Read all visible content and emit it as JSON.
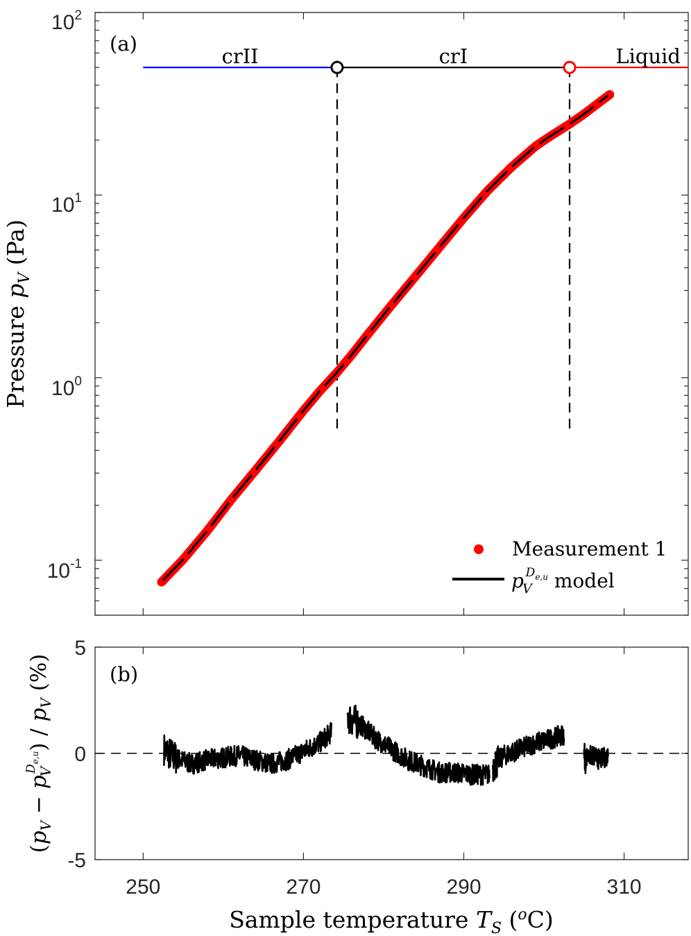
{
  "chart_data": [
    {
      "panel": "(a)",
      "type": "line",
      "yscale": "log",
      "xlim": [
        244,
        318
      ],
      "ylim": [
        0.05,
        100
      ],
      "ytick_labels": [
        {
          "base": "10",
          "exp": "2"
        },
        {
          "base": "10",
          "exp": "1"
        },
        {
          "base": "10",
          "exp": "0"
        },
        {
          "base": "10",
          "exp": "-1"
        }
      ],
      "ylabel": {
        "prefix": "Pressure ",
        "var": "p",
        "sub": "V",
        "unit": " (Pa)"
      },
      "phases": [
        {
          "label": "crII",
          "x0": 250,
          "x1": 274.2,
          "color": "#0000ff"
        },
        {
          "label": "crI",
          "x0": 274.2,
          "x1": 303.2,
          "color": "#000000"
        },
        {
          "label": "Liquid",
          "x0": 303.2,
          "x1": 318,
          "color": "#ff0000"
        }
      ],
      "phase_line_y": 50,
      "transitions": [
        {
          "x": 274.2,
          "y": 50,
          "color": "#000000",
          "drop_to": 0.5
        },
        {
          "x": 303.2,
          "y": 50,
          "color": "#ff0000",
          "drop_to": 0.5
        }
      ],
      "series": [
        {
          "name": "Measurement 1",
          "style": "points",
          "color": "#ff0000",
          "x": [
            252.3,
            255,
            258,
            261,
            264,
            267,
            270,
            272,
            274.2,
            276,
            278,
            281,
            284,
            287,
            290,
            293,
            296,
            299,
            301,
            303.2,
            305,
            306.5,
            308.2
          ],
          "y": [
            0.076,
            0.101,
            0.145,
            0.215,
            0.31,
            0.45,
            0.66,
            0.84,
            1.07,
            1.33,
            1.72,
            2.5,
            3.6,
            5.2,
            7.5,
            10.6,
            14.3,
            18.6,
            21.3,
            24.5,
            27.8,
            31.2,
            35.5
          ]
        },
        {
          "name": "model",
          "style": "line",
          "color": "#000000",
          "x": [
            252.5,
            255,
            258,
            261,
            264,
            267,
            270,
            272,
            274.2,
            276,
            278,
            281,
            284,
            287,
            290,
            293,
            296,
            299,
            301,
            303.2,
            305,
            306.5,
            308
          ],
          "y": [
            0.078,
            0.101,
            0.145,
            0.215,
            0.31,
            0.45,
            0.66,
            0.84,
            1.07,
            1.33,
            1.72,
            2.5,
            3.6,
            5.2,
            7.5,
            10.6,
            14.3,
            18.6,
            21.3,
            24.5,
            27.8,
            31.2,
            35.2
          ]
        }
      ],
      "legend": {
        "placement": "bottom-right",
        "entries": [
          {
            "marker": "dot",
            "color": "#ff0000",
            "text": "Measurement 1"
          },
          {
            "marker": "line",
            "color": "#000000",
            "var": "p",
            "sub": "V",
            "sup": "D",
            "supsub": "e,u",
            "text": " model"
          }
        ]
      }
    },
    {
      "panel": "(b)",
      "type": "line",
      "xlim": [
        244,
        318
      ],
      "ylim": [
        -5,
        5
      ],
      "xticks": [
        250,
        270,
        290,
        310
      ],
      "yticks": [
        5,
        0,
        -5
      ],
      "xlabel": {
        "prefix": "Sample temperature ",
        "var": "T",
        "sub": "S",
        "unit_open": " (",
        "unit_sup": "o",
        "unit": "C)"
      },
      "ylabel": "(p_V − p_V^{D_{e,u}}) / p_V (%)",
      "ylabel_parts": {
        "open": "(",
        "var": "p",
        "sub": "V",
        "minus": " − ",
        "sup": "D",
        "supsub": "e,u",
        "close": ")",
        "div": " / ",
        "pct": " (%)"
      },
      "zero_line": {
        "y": 0,
        "style": "dashed"
      },
      "series": [
        {
          "name": "residual",
          "color": "#000000",
          "segments": [
            {
              "x": [
                252.6,
                254,
                256,
                258,
                260,
                262,
                264,
                266,
                268,
                270,
                272,
                273.5
              ],
              "y": [
                0.2,
                -0.2,
                -0.5,
                -0.3,
                -0.2,
                -0.1,
                -0.3,
                -0.5,
                -0.3,
                0.1,
                0.5,
                1.0
              ]
            },
            {
              "x": [
                275.5,
                277,
                279,
                281,
                283,
                285,
                287,
                289,
                291,
                293.2
              ],
              "y": [
                1.7,
                1.4,
                0.7,
                0.2,
                -0.3,
                -0.6,
                -0.9,
                -0.9,
                -1.0,
                -1.0
              ]
            },
            {
              "x": [
                293.6,
                295,
                297,
                299,
                301,
                302.5
              ],
              "y": [
                -0.6,
                -0.1,
                0.2,
                0.5,
                0.7,
                0.9
              ]
            },
            {
              "x": [
                305,
                306,
                307,
                308
              ],
              "y": [
                -0.2,
                -0.1,
                -0.3,
                -0.1
              ]
            }
          ],
          "noise_amplitude": 0.7
        }
      ]
    }
  ]
}
